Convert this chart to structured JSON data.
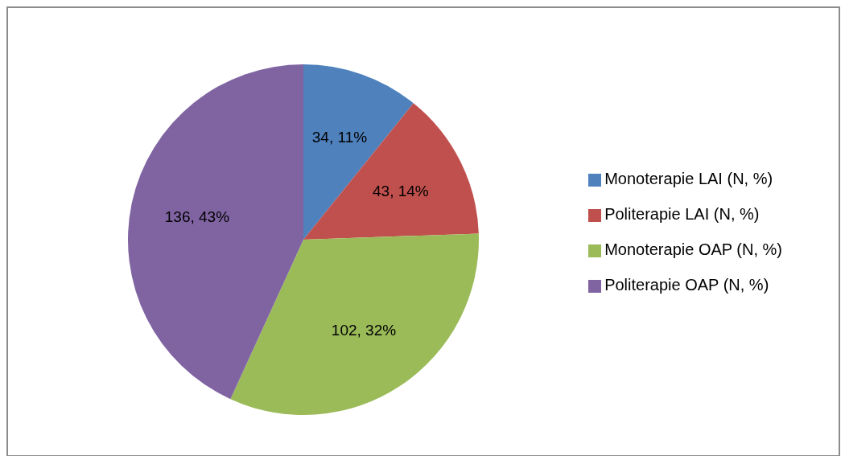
{
  "chart_data": {
    "type": "pie",
    "categories": [
      "Monoterapie LAI (N, %)",
      "Politerapie LAI (N, %)",
      "Monoterapie OAP (N, %)",
      "Politerapie OAP (N, %)"
    ],
    "values": [
      34,
      43,
      102,
      136
    ],
    "colors": [
      "#4f81bd",
      "#c0504d",
      "#9bbb59",
      "#8064a2"
    ],
    "value_labels": [
      "34, 11%",
      "43, 14%",
      "102, 32%",
      "136, 43%"
    ],
    "legend": "right"
  }
}
